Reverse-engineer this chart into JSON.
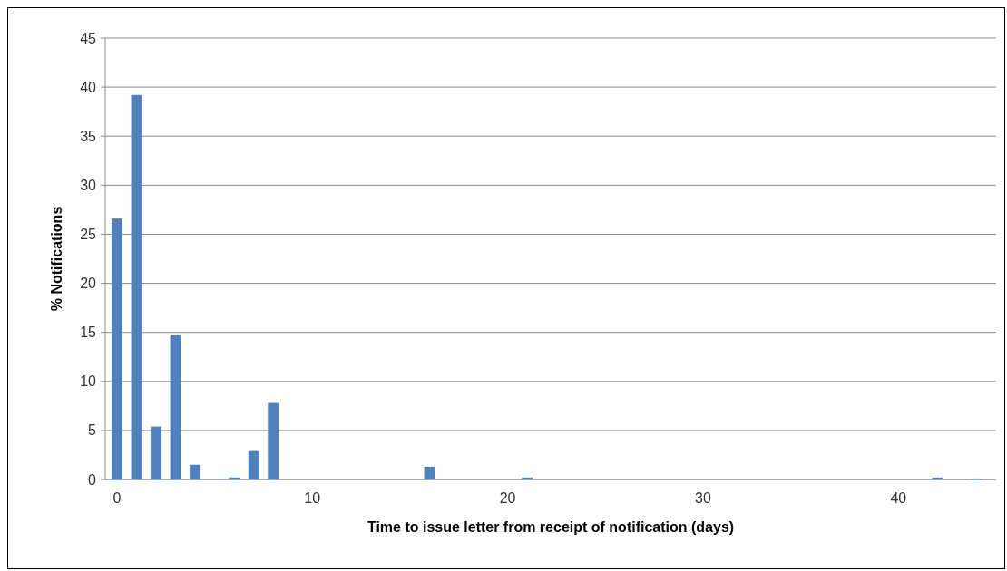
{
  "chart_data": {
    "type": "bar",
    "xlabel": "Time to issue letter from receipt of notification (days)",
    "ylabel": "% Notifications",
    "x": [
      0,
      1,
      2,
      3,
      4,
      6,
      7,
      8,
      16,
      21,
      42,
      44
    ],
    "values": [
      26.6,
      39.2,
      5.4,
      14.7,
      1.5,
      0.2,
      2.9,
      7.8,
      1.3,
      0.2,
      0.2,
      0.1
    ],
    "color": "#4f81bd",
    "xlim": [
      -0.6,
      45
    ],
    "xticks": [
      0,
      10,
      20,
      30,
      40
    ],
    "ylim": [
      0,
      45
    ],
    "yticks": [
      0,
      5,
      10,
      15,
      20,
      25,
      30,
      35,
      40,
      45
    ],
    "grid": "y"
  }
}
